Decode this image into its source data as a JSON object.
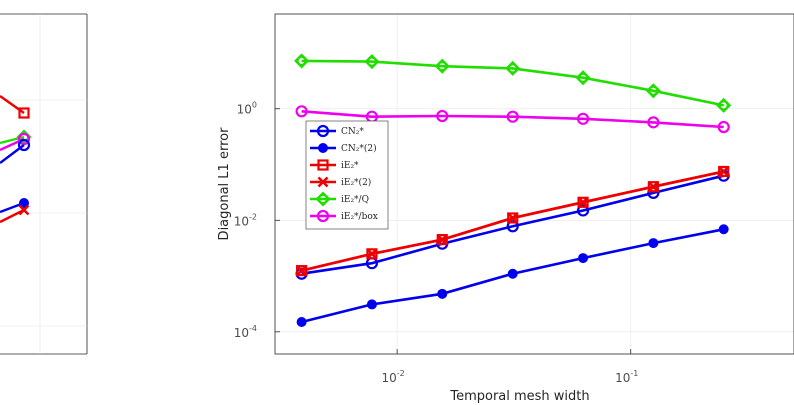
{
  "chart_data": [
    {
      "type": "line",
      "xscale": "log",
      "yscale": "log",
      "xlabel": "Temporal mesh width",
      "ylabel": "Diagonal L1 error",
      "xlim": [
        0.003,
        0.5
      ],
      "ylim": [
        4e-05,
        50
      ],
      "xticks": [
        {
          "value": 0.01,
          "base": "10",
          "exp": "-2"
        },
        {
          "value": 0.1,
          "base": "10",
          "exp": "-1"
        }
      ],
      "yticks": [
        {
          "value": 1,
          "base": "10",
          "exp": "0"
        },
        {
          "value": 0.01,
          "base": "10",
          "exp": "-2"
        },
        {
          "value": 0.0001,
          "base": "10",
          "exp": "-4"
        }
      ],
      "grid": true,
      "legend_position": "left",
      "x": [
        0.0039,
        0.0078,
        0.0156,
        0.03125,
        0.0625,
        0.125,
        0.25
      ],
      "series": [
        {
          "name": "CN₂*",
          "color": "#0000ee",
          "marker": "circle",
          "values": [
            0.0011,
            0.0017,
            0.0038,
            0.0078,
            0.015,
            0.031,
            0.063
          ]
        },
        {
          "name": "CN₂*(2)",
          "color": "#0000ee",
          "marker": "dot",
          "values": [
            0.00015,
            0.00031,
            0.00048,
            0.0011,
            0.0021,
            0.0039,
            0.0069
          ]
        },
        {
          "name": "iE₂*",
          "color": "#ee0000",
          "marker": "square",
          "values": [
            0.00125,
            0.0025,
            0.0045,
            0.011,
            0.021,
            0.04,
            0.075
          ]
        },
        {
          "name": "iE₂*(2)",
          "color": "#ee0000",
          "marker": "x",
          "values": [
            0.00125,
            0.0025,
            0.0045,
            0.011,
            0.021,
            0.04,
            0.075
          ]
        },
        {
          "name": "iE₂*/Q",
          "color": "#22dd00",
          "marker": "diamond",
          "values": [
            7.2,
            7.0,
            5.8,
            5.3,
            3.6,
            2.1,
            1.15
          ]
        },
        {
          "name": "iE₂*/box",
          "color": "#ee00ee",
          "marker": "circle",
          "values": [
            0.9,
            0.72,
            0.74,
            0.72,
            0.66,
            0.57,
            0.47
          ]
        }
      ]
    },
    {
      "type": "line",
      "partial": true,
      "series": [
        {
          "name": "",
          "color": "#ee0000",
          "marker": "square"
        },
        {
          "name": "",
          "color": "#22dd00",
          "marker": "diamond"
        },
        {
          "name": "",
          "color": "#ee00ee",
          "marker": "circle"
        },
        {
          "name": "",
          "color": "#0000ee",
          "marker": "circle"
        },
        {
          "name": "",
          "color": "#0000ee",
          "marker": "dot"
        },
        {
          "name": "",
          "color": "#ee0000",
          "marker": "x"
        }
      ]
    }
  ]
}
